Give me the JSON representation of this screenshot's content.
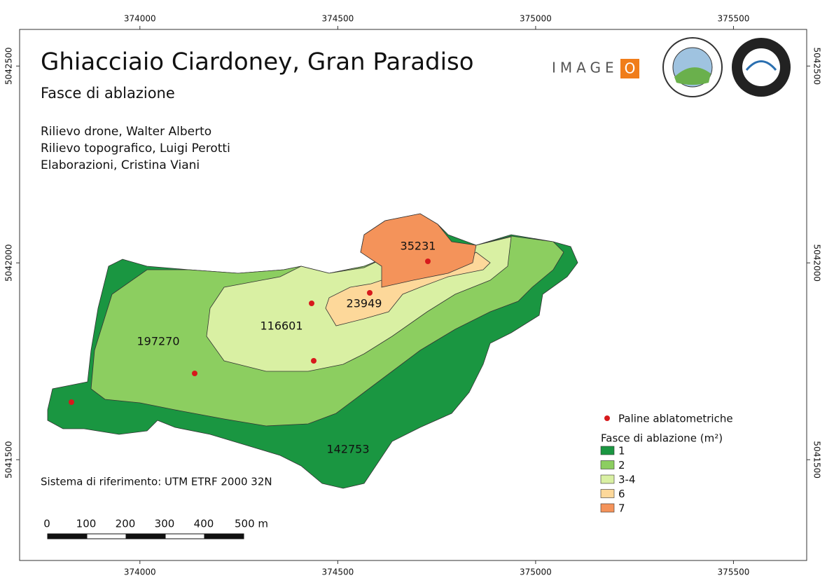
{
  "map": {
    "title": "Ghiacciaio Ciardoney, Gran Paradiso",
    "subtitle": "Fasce di ablazione",
    "credits": [
      "Rilievo drone, Walter Alberto",
      "Rilievo topografico, Luigi Perotti",
      "Elaborazioni, Cristina Viani"
    ],
    "logo": {
      "text": "IMAGE",
      "mark": "O"
    },
    "reference": "Sistema di riferimento: UTM ETRF 2000 32N",
    "xlim": [
      373696,
      375685
    ],
    "ylim": [
      5041244,
      5042593
    ],
    "xticks": [
      374000,
      374500,
      375000,
      375500
    ],
    "yticks": [
      5041500,
      5042000,
      5042500
    ],
    "zones": [
      {
        "name": "1",
        "color": "#1a9641",
        "area": 142753
      },
      {
        "name": "2",
        "color": "#8cce60",
        "area": 197270
      },
      {
        "name": "3-4",
        "color": "#d9f0a3",
        "area": 116601
      },
      {
        "name": "6",
        "color": "#fdd89a",
        "area": 23949
      },
      {
        "name": "7",
        "color": "#f4935a",
        "area": 35231
      }
    ],
    "points_label": "Paline ablatometriche",
    "point_color": "#d7191c",
    "legend_title": "Fasce di ablazione (m²)",
    "scale_labels": [
      "0",
      "100",
      "200",
      "300",
      "400",
      "500 m"
    ]
  }
}
